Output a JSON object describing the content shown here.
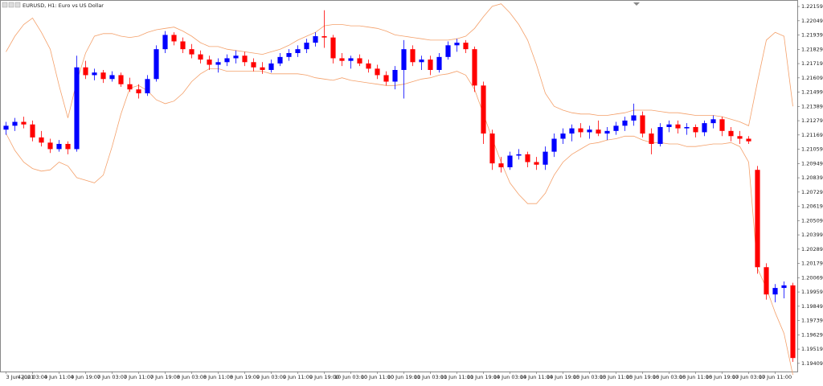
{
  "chart_data": {
    "type": "candlestick",
    "title": "EURUSD, H1:  Euro vs US Dollar",
    "up_color": "#0000ff",
    "down_color": "#ff0000",
    "categories": [
      "3 Jun 2021",
      null,
      null,
      "4 Jun 03:00",
      null,
      null,
      "4 Jun 11:00",
      null,
      null,
      "4 Jun 19:00",
      null,
      null,
      "7 Jun 03:00",
      null,
      null,
      "7 Jun 11:00",
      null,
      null,
      "7 Jun 19:00",
      null,
      null,
      "8 Jun 03:00",
      null,
      null,
      "8 Jun 11:00",
      null,
      null,
      "8 Jun 19:00",
      null,
      null,
      "9 Jun 03:00",
      null,
      null,
      "9 Jun 11:00",
      null,
      null,
      "9 Jun 19:00",
      null,
      null,
      "10 Jun 03:00",
      null,
      null,
      "10 Jun 11:00",
      null,
      null,
      "10 Jun 19:00",
      null,
      null,
      "11 Jun 03:00",
      null,
      null,
      "11 Jun 11:00",
      null,
      null,
      "11 Jun 19:00",
      null,
      null,
      "14 Jun 03:00",
      null,
      null,
      "14 Jun 11:00",
      null,
      null,
      "14 Jun 19:00",
      null,
      null,
      "15 Jun 03:00",
      null,
      null,
      "15 Jun 11:00",
      null,
      null,
      "15 Jun 19:00",
      null,
      null,
      "16 Jun 03:00",
      null,
      null,
      "16 Jun 11:00",
      null,
      null,
      "16 Jun 19:00",
      null,
      null,
      "17 Jun 03:00",
      null,
      null,
      "17 Jun 11:00",
      null,
      null
    ],
    "open": [
      1.2121,
      1.2124,
      1.2127,
      1.2125,
      1.2115,
      1.2111,
      1.2106,
      1.211,
      1.2106,
      1.2169,
      1.2163,
      1.2165,
      1.216,
      1.2163,
      1.2156,
      1.2152,
      1.2149,
      1.216,
      1.2183,
      1.2194,
      1.2189,
      1.2183,
      1.2179,
      1.2175,
      1.2171,
      1.2173,
      1.2176,
      1.2178,
      1.2173,
      1.2169,
      1.2167,
      1.2172,
      1.2177,
      1.218,
      1.2183,
      1.2188,
      1.2193,
      1.2192,
      1.2176,
      1.2174,
      1.2176,
      1.2172,
      1.2168,
      1.2163,
      1.2158,
      1.2167,
      1.2183,
      1.2173,
      1.2175,
      1.2167,
      1.2177,
      1.2186,
      1.2188,
      1.2183,
      1.2155,
      1.2118,
      1.2095,
      1.2092,
      1.2101,
      1.2102,
      1.2096,
      1.2094,
      1.2104,
      1.2114,
      1.2118,
      1.2122,
      1.2119,
      1.2121,
      1.2118,
      1.212,
      1.2124,
      1.2128,
      1.2132,
      1.2118,
      1.211,
      1.2123,
      1.2125,
      1.2122,
      1.2123,
      1.2119,
      1.2126,
      1.2129,
      1.212,
      1.2116,
      1.2114,
      1.209,
      1.2015,
      1.1994,
      1.1999,
      1.2001
    ],
    "high": [
      1.2127,
      1.213,
      1.2131,
      1.2128,
      1.212,
      1.2114,
      1.2113,
      1.2112,
      1.2178,
      1.2174,
      1.2168,
      1.2167,
      1.2166,
      1.2165,
      1.2161,
      1.2156,
      1.2163,
      1.2186,
      1.2197,
      1.2196,
      1.2192,
      1.2187,
      1.2182,
      1.2178,
      1.2176,
      1.2179,
      1.2182,
      1.2181,
      1.2176,
      1.2173,
      1.2175,
      1.218,
      1.2183,
      1.2186,
      1.2191,
      1.2196,
      1.2213,
      1.2194,
      1.218,
      1.2178,
      1.2179,
      1.2175,
      1.2171,
      1.2166,
      1.217,
      1.219,
      1.2186,
      1.2178,
      1.2178,
      1.218,
      1.2189,
      1.2191,
      1.219,
      1.2185,
      1.2158,
      1.2121,
      1.21,
      1.2104,
      1.2106,
      1.2104,
      1.21,
      1.2108,
      1.2118,
      1.2122,
      1.2125,
      1.2126,
      1.2124,
      1.2128,
      1.2123,
      1.2127,
      1.2131,
      1.2141,
      1.2135,
      1.2122,
      1.2126,
      1.2128,
      1.2128,
      1.2126,
      1.2125,
      1.2128,
      1.2132,
      1.2131,
      1.2123,
      1.212,
      1.2116,
      1.2093,
      1.2018,
      1.2002,
      1.2004,
      1.2003
    ],
    "low": [
      1.2117,
      1.212,
      1.2122,
      1.2112,
      1.2108,
      1.2103,
      1.2104,
      1.2102,
      1.2104,
      1.216,
      1.2159,
      1.2157,
      1.2158,
      1.2154,
      1.215,
      1.2145,
      1.2147,
      1.2158,
      1.218,
      1.2186,
      1.218,
      1.2176,
      1.2172,
      1.2167,
      1.2165,
      1.217,
      1.2172,
      1.217,
      1.2166,
      1.2164,
      1.2165,
      1.217,
      1.2174,
      1.2177,
      1.218,
      1.2185,
      1.2184,
      1.2172,
      1.217,
      1.2168,
      1.217,
      1.2165,
      1.216,
      1.2155,
      1.2152,
      1.2145,
      1.217,
      1.2167,
      1.2163,
      1.2165,
      1.2175,
      1.2181,
      1.218,
      1.215,
      1.211,
      1.209,
      1.2088,
      1.209,
      1.2098,
      1.2092,
      1.209,
      1.209,
      1.21,
      1.211,
      1.2112,
      1.2115,
      1.2114,
      1.2116,
      1.2113,
      1.2117,
      1.212,
      1.2124,
      1.2115,
      1.2102,
      1.2108,
      1.2119,
      1.2118,
      1.2117,
      1.2115,
      1.2116,
      1.2122,
      1.2116,
      1.2112,
      1.211,
      1.211,
      1.201,
      1.199,
      1.1988,
      1.1991,
      1.1942
    ],
    "close": [
      1.2124,
      1.2127,
      1.2125,
      1.2115,
      1.2111,
      1.2106,
      1.211,
      1.2106,
      1.2169,
      1.2163,
      1.2165,
      1.216,
      1.2163,
      1.2156,
      1.2152,
      1.2149,
      1.216,
      1.2183,
      1.2194,
      1.2189,
      1.2183,
      1.2179,
      1.2175,
      1.2171,
      1.2173,
      1.2176,
      1.2178,
      1.2173,
      1.2169,
      1.2167,
      1.2172,
      1.2177,
      1.218,
      1.2183,
      1.2188,
      1.2193,
      1.2192,
      1.2176,
      1.2174,
      1.2176,
      1.2172,
      1.2168,
      1.2163,
      1.2158,
      1.2167,
      1.2183,
      1.2173,
      1.2175,
      1.2167,
      1.2177,
      1.2186,
      1.2188,
      1.2183,
      1.2155,
      1.2118,
      1.2095,
      1.2092,
      1.2101,
      1.2102,
      1.2096,
      1.2094,
      1.2104,
      1.2114,
      1.2118,
      1.2122,
      1.2119,
      1.2121,
      1.2118,
      1.212,
      1.2124,
      1.2128,
      1.2132,
      1.2118,
      1.211,
      1.2123,
      1.2125,
      1.2122,
      1.2123,
      1.2119,
      1.2126,
      1.2129,
      1.212,
      1.2116,
      1.2114,
      1.2112,
      1.2015,
      1.1994,
      1.1999,
      1.2001,
      1.1945
    ],
    "bands": {
      "color": "#f4a06a",
      "upper": [
        1.2181,
        1.2193,
        1.2202,
        1.2207,
        1.2196,
        1.2183,
        1.2155,
        1.213,
        1.2158,
        1.218,
        1.2193,
        1.2195,
        1.2195,
        1.2193,
        1.2192,
        1.2193,
        1.2196,
        1.2198,
        1.2199,
        1.22,
        1.2197,
        1.2193,
        1.2188,
        1.2185,
        1.2185,
        1.2183,
        1.2182,
        1.2181,
        1.218,
        1.2179,
        1.2181,
        1.2183,
        1.2186,
        1.219,
        1.2193,
        1.2196,
        1.2201,
        1.2202,
        1.2202,
        1.2201,
        1.2201,
        1.22,
        1.2199,
        1.2197,
        1.2194,
        1.2193,
        1.2192,
        1.2191,
        1.219,
        1.219,
        1.219,
        1.2191,
        1.2193,
        1.2199,
        1.2208,
        1.2216,
        1.2218,
        1.2211,
        1.2202,
        1.219,
        1.2171,
        1.2149,
        1.2139,
        1.2136,
        1.2134,
        1.2133,
        1.2133,
        1.2132,
        1.2132,
        1.2133,
        1.2134,
        1.2136,
        1.2136,
        1.2136,
        1.2135,
        1.2134,
        1.2134,
        1.2133,
        1.2132,
        1.2132,
        1.2132,
        1.2131,
        1.2129,
        1.2127,
        1.2124,
        1.2158,
        1.219,
        1.2196,
        1.2193,
        1.2139
      ],
      "lower": [
        1.2118,
        1.2105,
        1.2096,
        1.2091,
        1.2089,
        1.209,
        1.2096,
        1.2093,
        1.2084,
        1.2082,
        1.208,
        1.2086,
        1.2108,
        1.2133,
        1.2153,
        1.2155,
        1.2151,
        1.2144,
        1.2141,
        1.2143,
        1.2149,
        1.2158,
        1.2164,
        1.2168,
        1.2168,
        1.2166,
        1.2166,
        1.2166,
        1.2166,
        1.2166,
        1.2164,
        1.2164,
        1.2164,
        1.2164,
        1.2163,
        1.2161,
        1.216,
        1.2159,
        1.2161,
        1.2159,
        1.2158,
        1.2157,
        1.2156,
        1.2155,
        1.2155,
        1.2156,
        1.2158,
        1.216,
        1.2161,
        1.2163,
        1.2164,
        1.2166,
        1.2163,
        1.2152,
        1.2133,
        1.2114,
        1.2096,
        1.208,
        1.2071,
        1.2064,
        1.2064,
        1.2072,
        1.2086,
        1.2096,
        1.2102,
        1.2106,
        1.211,
        1.2111,
        1.2113,
        1.2114,
        1.2116,
        1.2116,
        1.2113,
        1.2111,
        1.2111,
        1.211,
        1.211,
        1.2108,
        1.2108,
        1.2109,
        1.211,
        1.211,
        1.2111,
        1.2108,
        1.2096,
        1.2014,
        1.1999,
        1.198,
        1.1964,
        1.1932
      ]
    },
    "ylim": [
      1.19346,
      1.22209
    ],
    "yticks": [
      1.22159,
      1.22049,
      1.21939,
      1.21829,
      1.21719,
      1.21609,
      1.21499,
      1.21389,
      1.21279,
      1.21169,
      1.21059,
      1.20949,
      1.20839,
      1.20729,
      1.20619,
      1.20509,
      1.20399,
      1.20289,
      1.20179,
      1.20069,
      1.19959,
      1.19849,
      1.19739,
      1.19629,
      1.19519,
      1.19409
    ]
  }
}
